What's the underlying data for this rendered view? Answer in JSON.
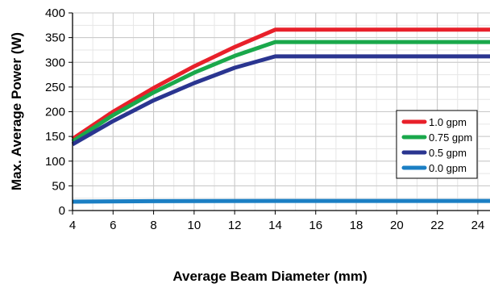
{
  "chart_data": {
    "type": "line",
    "title": "",
    "xlabel": "Average Beam Diameter (mm)",
    "ylabel": "Max. Average Power (W)",
    "xlim": [
      4,
      24.6
    ],
    "ylim": [
      0,
      400
    ],
    "xticks": [
      4,
      6,
      8,
      10,
      12,
      14,
      16,
      18,
      20,
      22,
      24
    ],
    "yticks": [
      0,
      50,
      100,
      150,
      200,
      250,
      300,
      350,
      400
    ],
    "grid": true,
    "legend_position": "right",
    "series": [
      {
        "name": "1.0 gpm",
        "color": "#e8202a",
        "x": [
          4,
          6,
          8,
          10,
          12,
          14,
          24.6
        ],
        "y": [
          145,
          200,
          248,
          292,
          331,
          366,
          366
        ]
      },
      {
        "name": "0.75 gpm",
        "color": "#1aa84b",
        "x": [
          4,
          6,
          8,
          10,
          12,
          14,
          24.6
        ],
        "y": [
          140,
          193,
          239,
          279,
          313,
          341,
          341
        ]
      },
      {
        "name": "0.5 gpm",
        "color": "#2a3590",
        "x": [
          4,
          6,
          8,
          10,
          12,
          14,
          24.6
        ],
        "y": [
          134,
          181,
          223,
          258,
          289,
          312,
          312
        ]
      },
      {
        "name": "0.0 gpm",
        "color": "#1b7fc4",
        "x": [
          4,
          8,
          14,
          24.6
        ],
        "y": [
          18,
          19,
          19.5,
          19.5
        ]
      }
    ]
  }
}
